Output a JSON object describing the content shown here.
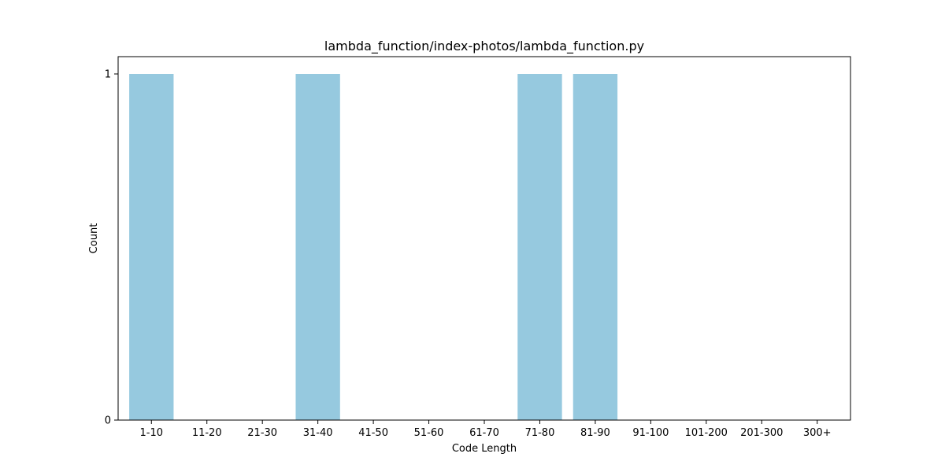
{
  "chart_data": {
    "type": "bar",
    "title": "lambda_function/index-photos/lambda_function.py",
    "xlabel": "Code Length",
    "ylabel": "Count",
    "categories": [
      "1-10",
      "11-20",
      "21-30",
      "31-40",
      "41-50",
      "51-60",
      "61-70",
      "71-80",
      "81-90",
      "91-100",
      "101-200",
      "201-300",
      "300+"
    ],
    "values": [
      1,
      0,
      0,
      1,
      0,
      0,
      0,
      1,
      1,
      0,
      0,
      0,
      0
    ],
    "ylim": [
      0,
      1.05
    ],
    "yticks": [
      "0",
      "1"
    ],
    "grid": false,
    "legend": "none",
    "bar_color": "#96c9df",
    "axis_color": "#000000"
  }
}
